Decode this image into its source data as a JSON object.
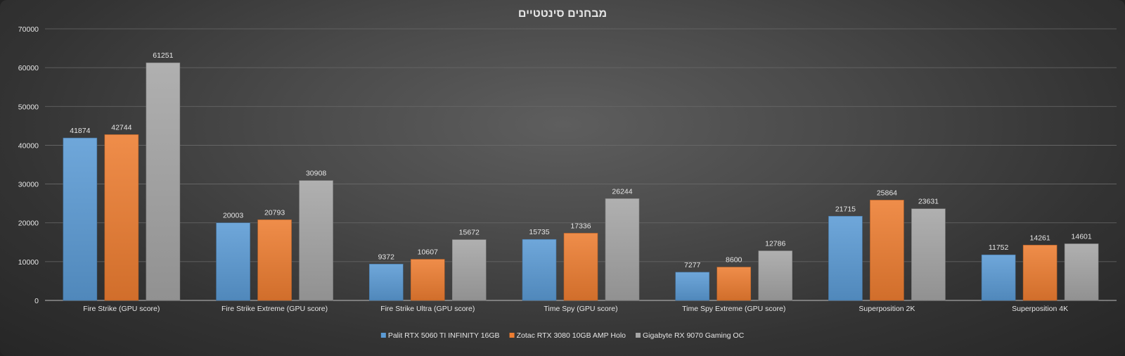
{
  "chart_data": {
    "type": "bar",
    "title": "מבחנים סינטטיים",
    "xlabel": "",
    "ylabel": "",
    "ylim": [
      0,
      70000
    ],
    "yticks": [
      0,
      10000,
      20000,
      30000,
      40000,
      50000,
      60000,
      70000
    ],
    "grid": true,
    "legend_position": "bottom",
    "categories": [
      "Fire Strike (GPU score)",
      "Fire Strike Extreme (GPU score)",
      "Fire Strike Ultra (GPU score)",
      "Time Spy (GPU score)",
      "Time Spy Extreme (GPU score)",
      "Superposition 2K",
      "Superposition 4K"
    ],
    "series": [
      {
        "name": "Palit RTX 5060 TI INFINITY 16GB",
        "color": "#5b9bd5",
        "values": [
          41874,
          20003,
          9372,
          15735,
          7277,
          21715,
          11752
        ]
      },
      {
        "name": "Zotac RTX 3080 10GB AMP Holo",
        "color": "#ed7d31",
        "values": [
          42744,
          20793,
          10607,
          17336,
          8600,
          25864,
          14261
        ]
      },
      {
        "name": "Gigabyte RX 9070 Gaming OC",
        "color": "#a5a5a5",
        "values": [
          61251,
          30908,
          15672,
          26244,
          12786,
          23631,
          14601
        ]
      }
    ]
  }
}
